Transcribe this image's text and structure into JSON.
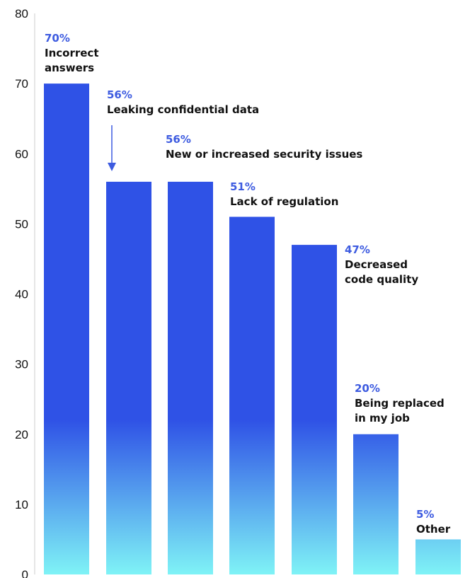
{
  "chart_data": {
    "type": "bar",
    "title": "",
    "xlabel": "",
    "ylabel": "",
    "ylim": [
      0,
      80
    ],
    "yticks": [
      "0",
      "10",
      "20",
      "30",
      "40",
      "50",
      "60",
      "70",
      "80"
    ],
    "grid": false,
    "legend": "none",
    "categories": [
      "Incorrect answers",
      "Leaking confidential data",
      "New or increased security issues",
      "Lack of regulation",
      "Decreased code quality",
      "Being replaced in my job",
      "Other"
    ],
    "values": [
      70,
      56,
      56,
      51,
      47,
      20,
      5
    ],
    "annotations": [
      {
        "pct": "70%",
        "lines": [
          "Incorrect",
          "answers"
        ]
      },
      {
        "pct": "56%",
        "lines": [
          "Leaking confidential data"
        ]
      },
      {
        "pct": "56%",
        "lines": [
          "New or increased security issues"
        ]
      },
      {
        "pct": "51%",
        "lines": [
          "Lack of regulation"
        ]
      },
      {
        "pct": "47%",
        "lines": [
          "Decreased",
          "code quality"
        ]
      },
      {
        "pct": "20%",
        "lines": [
          "Being replaced",
          "in my job"
        ]
      },
      {
        "pct": "5%",
        "lines": [
          "Other"
        ]
      }
    ],
    "arrow_points_to": "Leaking confidential data",
    "colors": {
      "bar_top": "#2f52e6",
      "bar_bottom": "#7ff3f6",
      "percent_text": "#3d5be0",
      "label_text": "#111111",
      "axis": "#cccccc",
      "arrow": "#3d5be0"
    }
  }
}
